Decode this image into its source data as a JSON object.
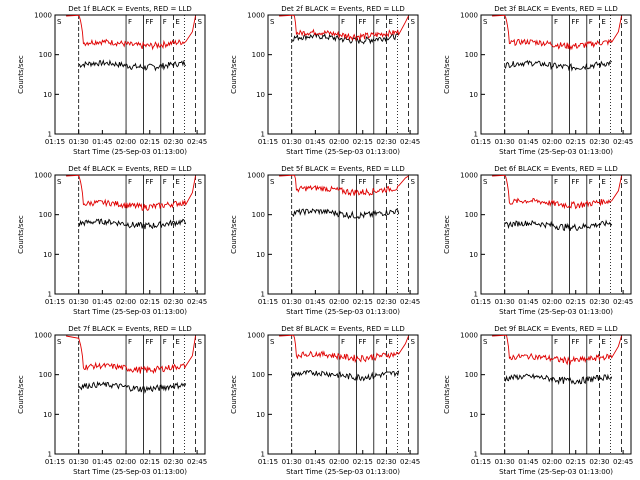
{
  "chart_data": [
    {
      "type": "line",
      "title": "Det 1f BLACK = Events, RED = LLD",
      "xlabel": "Start Time (25-Sep-03 01:13:00)",
      "ylabel": "Counts/sec",
      "ylog": true,
      "ylim": [
        1,
        1000
      ],
      "xlim": [
        "01:15",
        "02:50"
      ],
      "xticks": [
        "01:15",
        "01:30",
        "01:45",
        "02:00",
        "02:15",
        "02:30",
        "02:45"
      ],
      "yticks": [
        "1",
        "10",
        "100",
        "1000"
      ],
      "markers": [
        {
          "label": "S",
          "t": "01:15"
        },
        {
          "label": "F",
          "t": "02:00"
        },
        {
          "label": "FF",
          "t": "02:11"
        },
        {
          "label": "F",
          "t": "02:22"
        },
        {
          "label": "E",
          "t": "02:30"
        },
        {
          "label": "S",
          "t": "02:44"
        }
      ],
      "series": [
        {
          "name": "BLACK = Events",
          "color": "#000000",
          "level": 55
        },
        {
          "name": "RED = LLD",
          "color": "#e00000",
          "level": 190
        }
      ]
    },
    {
      "type": "line",
      "title": "Det 2f BLACK = Events, RED = LLD",
      "xlabel": "Start Time (25-Sep-03 01:13:00)",
      "ylabel": "Counts/sec",
      "ylog": true,
      "ylim": [
        1,
        1000
      ],
      "xlim": [
        "01:15",
        "02:50"
      ],
      "xticks": [
        "01:15",
        "01:30",
        "01:45",
        "02:00",
        "02:15",
        "02:30",
        "02:45"
      ],
      "yticks": [
        "1",
        "10",
        "100",
        "1000"
      ],
      "markers": [
        {
          "label": "S",
          "t": "01:15"
        },
        {
          "label": "F",
          "t": "02:00"
        },
        {
          "label": "FF",
          "t": "02:11"
        },
        {
          "label": "F",
          "t": "02:22"
        },
        {
          "label": "E",
          "t": "02:30"
        },
        {
          "label": "S",
          "t": "02:44"
        }
      ],
      "series": [
        {
          "name": "BLACK = Events",
          "color": "#000000",
          "level": 260
        },
        {
          "name": "RED = LLD",
          "color": "#e00000",
          "level": 330
        }
      ]
    },
    {
      "type": "line",
      "title": "Det 3f BLACK = Events, RED = LLD",
      "xlabel": "Start Time (25-Sep-03 01:13:00)",
      "ylabel": "Counts/sec",
      "ylog": true,
      "ylim": [
        1,
        1000
      ],
      "xlim": [
        "01:15",
        "02:50"
      ],
      "xticks": [
        "01:15",
        "01:30",
        "01:45",
        "02:00",
        "02:15",
        "02:30",
        "02:45"
      ],
      "yticks": [
        "1",
        "10",
        "100",
        "1000"
      ],
      "markers": [
        {
          "label": "S",
          "t": "01:15"
        },
        {
          "label": "F",
          "t": "02:00"
        },
        {
          "label": "FF",
          "t": "02:11"
        },
        {
          "label": "F",
          "t": "02:22"
        },
        {
          "label": "E",
          "t": "02:30"
        },
        {
          "label": "S",
          "t": "02:44"
        }
      ],
      "series": [
        {
          "name": "BLACK = Events",
          "color": "#000000",
          "level": 55
        },
        {
          "name": "RED = LLD",
          "color": "#e00000",
          "level": 190
        }
      ]
    },
    {
      "type": "line",
      "title": "Det 4f BLACK = Events, RED = LLD",
      "xlabel": "Start Time (25-Sep-03 01:13:00)",
      "ylabel": "Counts/sec",
      "ylog": true,
      "ylim": [
        1,
        1000
      ],
      "xlim": [
        "01:15",
        "02:50"
      ],
      "xticks": [
        "01:15",
        "01:30",
        "01:45",
        "02:00",
        "02:15",
        "02:30",
        "02:45"
      ],
      "yticks": [
        "1",
        "10",
        "100",
        "1000"
      ],
      "markers": [
        {
          "label": "S",
          "t": "01:15"
        },
        {
          "label": "F",
          "t": "02:00"
        },
        {
          "label": "FF",
          "t": "02:11"
        },
        {
          "label": "F",
          "t": "02:22"
        },
        {
          "label": "E",
          "t": "02:30"
        },
        {
          "label": "S",
          "t": "02:44"
        }
      ],
      "series": [
        {
          "name": "BLACK = Events",
          "color": "#000000",
          "level": 60
        },
        {
          "name": "RED = LLD",
          "color": "#e00000",
          "level": 180
        }
      ]
    },
    {
      "type": "line",
      "title": "Det 5f BLACK = Events, RED = LLD",
      "xlabel": "Start Time (25-Sep-03 01:13:00)",
      "ylabel": "Counts/sec",
      "ylog": true,
      "ylim": [
        1,
        1000
      ],
      "xlim": [
        "01:15",
        "02:50"
      ],
      "xticks": [
        "01:15",
        "01:30",
        "01:45",
        "02:00",
        "02:15",
        "02:30",
        "02:45"
      ],
      "yticks": [
        "1",
        "10",
        "100",
        "1000"
      ],
      "markers": [
        {
          "label": "S",
          "t": "01:15"
        },
        {
          "label": "F",
          "t": "02:00"
        },
        {
          "label": "FF",
          "t": "02:11"
        },
        {
          "label": "F",
          "t": "02:22"
        },
        {
          "label": "E",
          "t": "02:30"
        },
        {
          "label": "S",
          "t": "02:44"
        }
      ],
      "series": [
        {
          "name": "BLACK = Events",
          "color": "#000000",
          "level": 110
        },
        {
          "name": "RED = LLD",
          "color": "#e00000",
          "level": 420
        }
      ]
    },
    {
      "type": "line",
      "title": "Det 6f BLACK = Events, RED = LLD",
      "xlabel": "Start Time (25-Sep-03 01:13:00)",
      "ylabel": "Counts/sec",
      "ylog": true,
      "ylim": [
        1,
        1000
      ],
      "xlim": [
        "01:15",
        "02:50"
      ],
      "xticks": [
        "01:15",
        "01:30",
        "01:45",
        "02:00",
        "02:15",
        "02:30",
        "02:45"
      ],
      "yticks": [
        "1",
        "10",
        "100",
        "1000"
      ],
      "markers": [
        {
          "label": "S",
          "t": "01:15"
        },
        {
          "label": "F",
          "t": "02:00"
        },
        {
          "label": "FF",
          "t": "02:11"
        },
        {
          "label": "F",
          "t": "02:22"
        },
        {
          "label": "E",
          "t": "02:30"
        },
        {
          "label": "S",
          "t": "02:44"
        }
      ],
      "series": [
        {
          "name": "BLACK = Events",
          "color": "#000000",
          "level": 55
        },
        {
          "name": "RED = LLD",
          "color": "#e00000",
          "level": 200
        }
      ]
    },
    {
      "type": "line",
      "title": "Det 7f BLACK = Events, RED = LLD",
      "xlabel": "Start Time (25-Sep-03 01:13:00)",
      "ylabel": "Counts/sec",
      "ylog": true,
      "ylim": [
        1,
        1000
      ],
      "xlim": [
        "01:15",
        "02:50"
      ],
      "xticks": [
        "01:15",
        "01:30",
        "01:45",
        "02:00",
        "02:15",
        "02:30",
        "02:45"
      ],
      "yticks": [
        "1",
        "10",
        "100",
        "1000"
      ],
      "markers": [
        {
          "label": "S",
          "t": "01:15"
        },
        {
          "label": "F",
          "t": "02:00"
        },
        {
          "label": "FF",
          "t": "02:11"
        },
        {
          "label": "F",
          "t": "02:22"
        },
        {
          "label": "E",
          "t": "02:30"
        },
        {
          "label": "S",
          "t": "02:44"
        }
      ],
      "series": [
        {
          "name": "BLACK = Events",
          "color": "#000000",
          "level": 50
        },
        {
          "name": "RED = LLD",
          "color": "#e00000",
          "level": 150
        }
      ]
    },
    {
      "type": "line",
      "title": "Det 8f BLACK = Events, RED = LLD",
      "xlabel": "Start Time (25-Sep-03 01:13:00)",
      "ylabel": "Counts/sec",
      "ylog": true,
      "ylim": [
        1,
        1000
      ],
      "xlim": [
        "01:15",
        "02:50"
      ],
      "xticks": [
        "01:15",
        "01:30",
        "01:45",
        "02:00",
        "02:15",
        "02:30",
        "02:45"
      ],
      "yticks": [
        "1",
        "10",
        "100",
        "1000"
      ],
      "markers": [
        {
          "label": "S",
          "t": "01:15"
        },
        {
          "label": "F",
          "t": "02:00"
        },
        {
          "label": "FF",
          "t": "02:11"
        },
        {
          "label": "F",
          "t": "02:22"
        },
        {
          "label": "E",
          "t": "02:30"
        },
        {
          "label": "S",
          "t": "02:44"
        }
      ],
      "series": [
        {
          "name": "BLACK = Events",
          "color": "#000000",
          "level": 100
        },
        {
          "name": "RED = LLD",
          "color": "#e00000",
          "level": 300
        }
      ]
    },
    {
      "type": "line",
      "title": "Det 9f BLACK = Events, RED = LLD",
      "xlabel": "Start Time (25-Sep-03 01:13:00)",
      "ylabel": "Counts/sec",
      "ylog": true,
      "ylim": [
        1,
        1000
      ],
      "xlim": [
        "01:15",
        "02:50"
      ],
      "xticks": [
        "01:15",
        "01:30",
        "01:45",
        "02:00",
        "02:15",
        "02:30",
        "02:45"
      ],
      "yticks": [
        "1",
        "10",
        "100",
        "1000"
      ],
      "markers": [
        {
          "label": "S",
          "t": "01:15"
        },
        {
          "label": "F",
          "t": "02:00"
        },
        {
          "label": "FF",
          "t": "02:11"
        },
        {
          "label": "F",
          "t": "02:22"
        },
        {
          "label": "E",
          "t": "02:30"
        },
        {
          "label": "S",
          "t": "02:44"
        }
      ],
      "series": [
        {
          "name": "BLACK = Events",
          "color": "#000000",
          "level": 80
        },
        {
          "name": "RED = LLD",
          "color": "#e00000",
          "level": 260
        }
      ]
    }
  ]
}
